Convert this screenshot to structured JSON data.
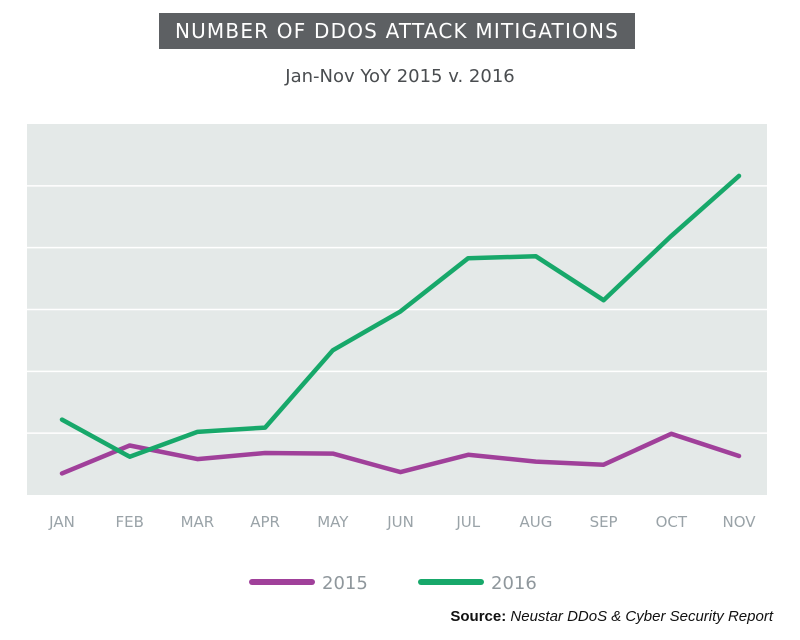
{
  "chart_data": {
    "type": "line",
    "title": "NUMBER OF DDOS ATTACK MITIGATIONS",
    "subtitle": "Jan-Nov YoY 2015 v. 2016",
    "categories": [
      "JAN",
      "FEB",
      "MAR",
      "APR",
      "MAY",
      "JUN",
      "JUL",
      "AUG",
      "SEP",
      "OCT",
      "NOV"
    ],
    "ylim": [
      0,
      6
    ],
    "grid": true,
    "legend_position": "bottom",
    "series": [
      {
        "name": "2015",
        "color": "#a0409a",
        "values": [
          0.35,
          0.8,
          0.58,
          0.68,
          0.67,
          0.37,
          0.65,
          0.54,
          0.49,
          0.99,
          0.63
        ]
      },
      {
        "name": "2016",
        "color": "#17a86a",
        "values": [
          1.22,
          0.62,
          1.02,
          1.09,
          2.34,
          2.97,
          3.83,
          3.86,
          3.15,
          4.19,
          5.16
        ]
      }
    ]
  },
  "source": {
    "label": "Source:",
    "text": "Neustar DDoS & Cyber Security Report"
  }
}
